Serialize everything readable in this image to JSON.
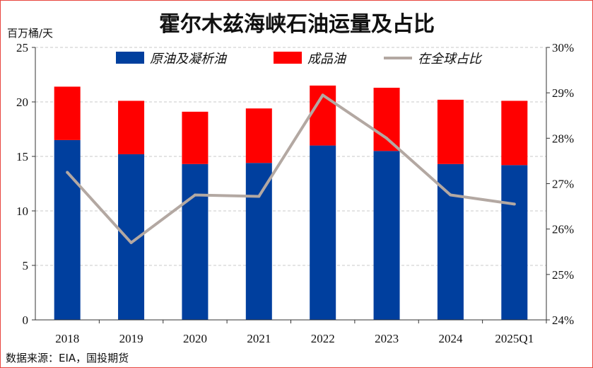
{
  "chart_data": {
    "type": "bar",
    "title": "霍尔木兹海峡石油运量及占比",
    "ylabel": "百万桶/天",
    "source": "数据来源：EIA，国投期货",
    "categories": [
      "2018",
      "2019",
      "2020",
      "2021",
      "2022",
      "2023",
      "2024",
      "2025Q1"
    ],
    "ylim": [
      0,
      25
    ],
    "y_ticks": [
      "0",
      "5",
      "10",
      "15",
      "20",
      "25"
    ],
    "y2lim": [
      24,
      30
    ],
    "y2_ticks": [
      "24%",
      "25%",
      "26%",
      "27%",
      "28%",
      "29%",
      "30%"
    ],
    "grid": "horizontal-dashed",
    "legend_position": "top",
    "colors": {
      "crude": "#003f9e",
      "products": "#ff0000",
      "share": "#b3a8a2",
      "frame": "#e8463f"
    },
    "series": [
      {
        "name": "原油及凝析油",
        "kind": "stacked-bar",
        "axis": "left",
        "values": [
          16.5,
          15.2,
          14.3,
          14.4,
          16.0,
          15.5,
          14.3,
          14.2
        ]
      },
      {
        "name": "成品油",
        "kind": "stacked-bar",
        "axis": "left",
        "values": [
          4.9,
          4.9,
          4.8,
          5.0,
          5.5,
          5.8,
          5.9,
          5.9
        ]
      },
      {
        "name": "在全球占比",
        "kind": "line",
        "axis": "right",
        "values": [
          27.25,
          25.7,
          26.75,
          26.72,
          28.95,
          28.0,
          26.75,
          26.55
        ]
      }
    ]
  }
}
